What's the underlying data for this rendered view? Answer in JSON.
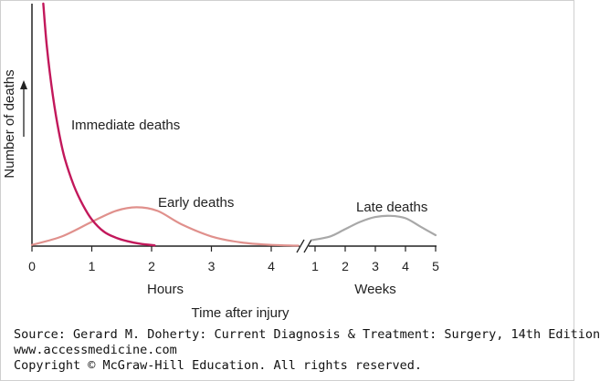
{
  "chart_data": {
    "type": "line",
    "ylabel": "Number of deaths",
    "xlabel": "Time after injury",
    "segments": [
      {
        "unit_label": "Hours",
        "ticks": [
          "0",
          "1",
          "2",
          "3",
          "4"
        ],
        "range": [
          0,
          4.5
        ]
      },
      {
        "unit_label": "Weeks",
        "ticks": [
          "1",
          "2",
          "3",
          "4",
          "5"
        ],
        "range": [
          0.9,
          5
        ]
      }
    ],
    "series": [
      {
        "name": "Immediate deaths",
        "segment": "Hours",
        "color": "#c2185b",
        "points": [
          [
            0.19,
            100
          ],
          [
            0.25,
            82
          ],
          [
            0.35,
            62
          ],
          [
            0.45,
            47
          ],
          [
            0.55,
            36
          ],
          [
            0.7,
            25
          ],
          [
            0.85,
            17
          ],
          [
            1.0,
            11
          ],
          [
            1.2,
            6
          ],
          [
            1.4,
            3.5
          ],
          [
            1.6,
            2
          ],
          [
            1.8,
            1
          ],
          [
            2.05,
            0.3
          ]
        ]
      },
      {
        "name": "Early deaths",
        "segment": "Hours",
        "color": "#e0908c",
        "points": [
          [
            0,
            0.5
          ],
          [
            0.5,
            4
          ],
          [
            1.0,
            10
          ],
          [
            1.4,
            14.5
          ],
          [
            1.75,
            16
          ],
          [
            2.1,
            14.5
          ],
          [
            2.5,
            9
          ],
          [
            3.0,
            4
          ],
          [
            3.5,
            1.5
          ],
          [
            4.0,
            0.5
          ],
          [
            4.45,
            0.2
          ]
        ]
      },
      {
        "name": "Late deaths",
        "segment": "Weeks",
        "color": "#a8a8a8",
        "points": [
          [
            0.9,
            2.5
          ],
          [
            1.5,
            4
          ],
          [
            2.0,
            7
          ],
          [
            2.5,
            10
          ],
          [
            3.0,
            12
          ],
          [
            3.5,
            12.5
          ],
          [
            4.0,
            11.5
          ],
          [
            4.5,
            8
          ],
          [
            5.0,
            4.5
          ]
        ]
      }
    ],
    "annotations": [
      "Immediate deaths",
      "Early deaths",
      "Late deaths"
    ]
  },
  "source": {
    "line1": "Source: Gerard M. Doherty: Current Diagnosis & Treatment: Surgery, 14th Edition",
    "line2": "www.accessmedicine.com",
    "line3": "Copyright © McGraw-Hill Education. All rights reserved."
  }
}
